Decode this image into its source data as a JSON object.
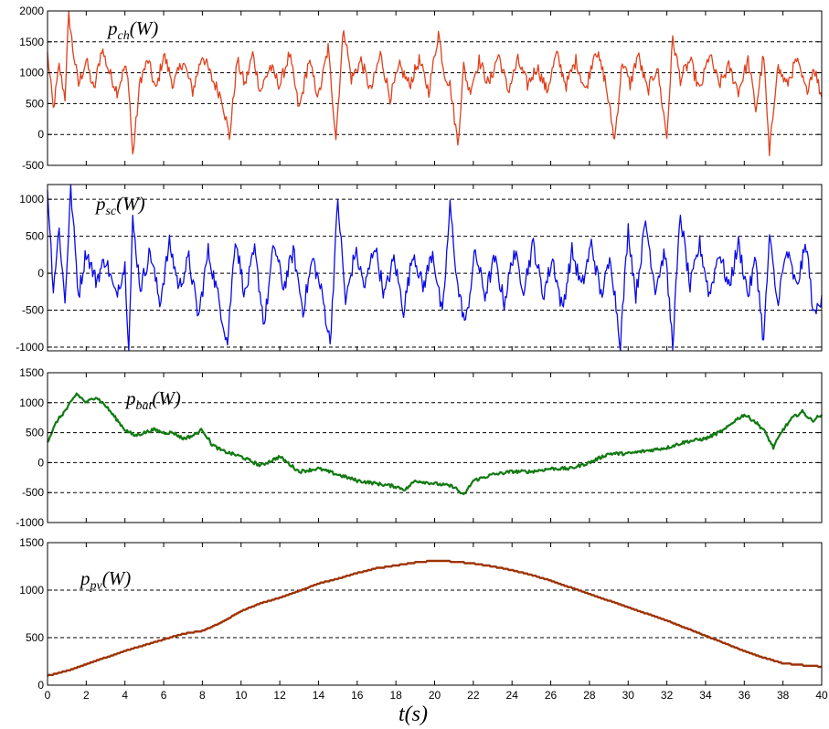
{
  "chart_data": [
    {
      "type": "line",
      "label_main": "p",
      "label_sub": "ch",
      "label_unit": "(W)",
      "color": "#e0401c",
      "ylim": [
        -500,
        2000
      ],
      "yticks": [
        -500,
        0,
        500,
        1000,
        1500,
        2000
      ],
      "ygrid": [
        0,
        500,
        1000,
        1500
      ],
      "x": [
        0,
        0.3,
        0.6,
        0.9,
        1.1,
        1.3,
        1.6,
        2.0,
        2.4,
        2.8,
        3.2,
        3.6,
        4.0,
        4.2,
        4.4,
        4.8,
        5.2,
        5.6,
        6.0,
        6.5,
        7.0,
        7.5,
        8.0,
        8.5,
        9.0,
        9.4,
        9.8,
        10.2,
        10.6,
        11.0,
        11.5,
        12.0,
        12.5,
        13.0,
        13.5,
        14.0,
        14.5,
        14.9,
        15.3,
        15.7,
        16.2,
        16.7,
        17.2,
        17.7,
        18.2,
        18.7,
        19.2,
        19.7,
        20.2,
        20.5,
        20.8,
        21.2,
        21.5,
        21.8,
        22.3,
        22.8,
        23.3,
        23.8,
        24.3,
        24.8,
        25.3,
        25.8,
        26.3,
        26.8,
        27.3,
        27.8,
        28.3,
        28.8,
        29.3,
        29.7,
        30.1,
        30.5,
        31.0,
        31.5,
        32.0,
        32.3,
        32.7,
        33.2,
        33.7,
        34.2,
        34.7,
        35.2,
        35.7,
        36.2,
        36.6,
        37.0,
        37.3,
        37.7,
        38.2,
        38.7,
        39.2,
        39.6,
        40.0
      ],
      "y": [
        1300,
        400,
        1100,
        600,
        1950,
        1400,
        800,
        1200,
        700,
        1400,
        1000,
        700,
        1100,
        800,
        -350,
        900,
        1200,
        700,
        1300,
        800,
        1200,
        700,
        1300,
        900,
        600,
        -50,
        1200,
        800,
        1300,
        700,
        1100,
        800,
        1300,
        400,
        1200,
        600,
        1400,
        -50,
        1750,
        900,
        1200,
        700,
        1300,
        600,
        1100,
        800,
        1200,
        700,
        1650,
        1000,
        800,
        -150,
        1100,
        700,
        1200,
        800,
        1300,
        700,
        1200,
        800,
        1100,
        700,
        1300,
        800,
        1200,
        700,
        1400,
        900,
        -100,
        1200,
        800,
        1300,
        700,
        1100,
        -50,
        1550,
        900,
        1200,
        700,
        1300,
        800,
        1100,
        700,
        1200,
        400,
        1300,
        -350,
        1100,
        800,
        1200,
        700,
        1100,
        600
      ],
      "noise": 110
    },
    {
      "type": "line",
      "label_main": "p",
      "label_sub": "sc",
      "label_unit": "(W)",
      "color": "#0a0ae8",
      "ylim": [
        -1050,
        1200
      ],
      "yticks": [
        -1000,
        -500,
        0,
        500,
        1000
      ],
      "ygrid": [
        -1000,
        -500,
        0,
        500,
        1000
      ],
      "x": [
        0,
        0.3,
        0.6,
        0.9,
        1.2,
        1.6,
        2.0,
        2.5,
        3.0,
        3.5,
        4.0,
        4.2,
        4.4,
        4.8,
        5.3,
        5.8,
        6.3,
        6.8,
        7.3,
        7.8,
        8.3,
        8.8,
        9.3,
        9.7,
        10.2,
        10.7,
        11.2,
        11.7,
        12.2,
        12.7,
        13.2,
        13.7,
        14.2,
        14.6,
        15.0,
        15.4,
        15.9,
        16.4,
        16.9,
        17.4,
        17.9,
        18.4,
        18.9,
        19.4,
        19.9,
        20.4,
        20.8,
        21.2,
        21.6,
        22.1,
        22.6,
        23.1,
        23.6,
        24.1,
        24.6,
        25.1,
        25.6,
        26.1,
        26.6,
        27.1,
        27.6,
        28.1,
        28.6,
        29.1,
        29.6,
        30.0,
        30.4,
        30.9,
        31.4,
        31.9,
        32.3,
        32.7,
        33.2,
        33.7,
        34.2,
        34.7,
        35.2,
        35.7,
        36.2,
        36.6,
        37.0,
        37.3,
        37.7,
        38.2,
        38.7,
        39.2,
        39.6,
        40.0
      ],
      "y": [
        1150,
        -200,
        600,
        -400,
        1150,
        -300,
        300,
        -100,
        200,
        -300,
        100,
        -1020,
        700,
        -200,
        300,
        -400,
        400,
        -200,
        200,
        -600,
        300,
        -300,
        -950,
        500,
        -300,
        300,
        -700,
        400,
        -200,
        300,
        -500,
        200,
        -300,
        -950,
        1000,
        -400,
        300,
        -200,
        400,
        -300,
        200,
        -500,
        300,
        -200,
        300,
        -600,
        900,
        -200,
        -700,
        300,
        -300,
        200,
        -400,
        300,
        -200,
        400,
        -300,
        200,
        -500,
        300,
        -200,
        400,
        -300,
        200,
        -950,
        600,
        -300,
        700,
        -200,
        300,
        -950,
        800,
        -200,
        400,
        -300,
        300,
        -200,
        400,
        -300,
        200,
        -950,
        500,
        -400,
        300,
        -200,
        400,
        -600,
        -300
      ],
      "noise": 120
    },
    {
      "type": "line",
      "label_main": "p",
      "label_sub": "bat",
      "label_unit": "(W)",
      "color": "#127a12",
      "ylim": [
        -1000,
        1500
      ],
      "yticks": [
        -1000,
        -500,
        0,
        500,
        1000,
        1500
      ],
      "ygrid": [
        -500,
        0,
        500,
        1000
      ],
      "x": [
        0,
        0.5,
        1.0,
        1.5,
        2.0,
        2.5,
        3.0,
        3.5,
        4.0,
        4.5,
        5.0,
        5.5,
        6.0,
        6.5,
        7.0,
        7.5,
        8.0,
        8.5,
        9.0,
        9.5,
        10.0,
        11.0,
        12.0,
        13.0,
        14.0,
        15.0,
        16.0,
        17.0,
        18.0,
        18.5,
        19.0,
        20.0,
        21.0,
        21.5,
        22.0,
        23.0,
        24.0,
        25.0,
        26.0,
        27.0,
        28.0,
        29.0,
        30.0,
        31.0,
        32.0,
        33.0,
        34.0,
        35.0,
        35.5,
        36.0,
        36.5,
        37.0,
        37.5,
        38.0,
        38.5,
        39.0,
        39.5,
        40.0
      ],
      "y": [
        350,
        700,
        900,
        1150,
        1000,
        1100,
        950,
        750,
        550,
        450,
        500,
        550,
        500,
        500,
        400,
        450,
        550,
        300,
        200,
        150,
        100,
        -50,
        100,
        -150,
        -100,
        -200,
        -300,
        -350,
        -400,
        -450,
        -300,
        -350,
        -400,
        -550,
        -300,
        -200,
        -150,
        -150,
        -100,
        -100,
        0,
        150,
        150,
        200,
        250,
        350,
        400,
        550,
        700,
        800,
        700,
        550,
        250,
        550,
        750,
        850,
        700,
        800
      ],
      "noise": 28
    },
    {
      "type": "line",
      "label_main": "p",
      "label_sub": "pv",
      "label_unit": "(W)",
      "color": "#9e3306",
      "ylim": [
        0,
        1500
      ],
      "yticks": [
        0,
        500,
        1000,
        1500
      ],
      "ygrid": [
        500,
        1000
      ],
      "x": [
        0,
        1,
        2,
        3,
        4,
        5,
        6,
        7,
        8,
        9,
        10,
        11,
        12,
        13,
        14,
        15,
        16,
        17,
        18,
        19,
        20,
        21,
        22,
        23,
        24,
        25,
        26,
        27,
        28,
        29,
        30,
        31,
        32,
        33,
        34,
        35,
        36,
        37,
        38,
        39,
        40
      ],
      "y": [
        100,
        150,
        220,
        290,
        360,
        420,
        480,
        540,
        570,
        660,
        780,
        860,
        920,
        990,
        1070,
        1120,
        1180,
        1230,
        1260,
        1290,
        1310,
        1300,
        1280,
        1250,
        1210,
        1160,
        1100,
        1030,
        960,
        890,
        820,
        750,
        680,
        600,
        520,
        440,
        360,
        290,
        230,
        210,
        195
      ],
      "noise": 0,
      "stepped": true
    }
  ],
  "x_axis": {
    "label": "t(s)",
    "xlim": [
      0,
      40
    ],
    "ticks": [
      0,
      2,
      4,
      6,
      8,
      10,
      12,
      14,
      16,
      18,
      20,
      22,
      24,
      26,
      28,
      30,
      32,
      34,
      36,
      38,
      40
    ]
  }
}
